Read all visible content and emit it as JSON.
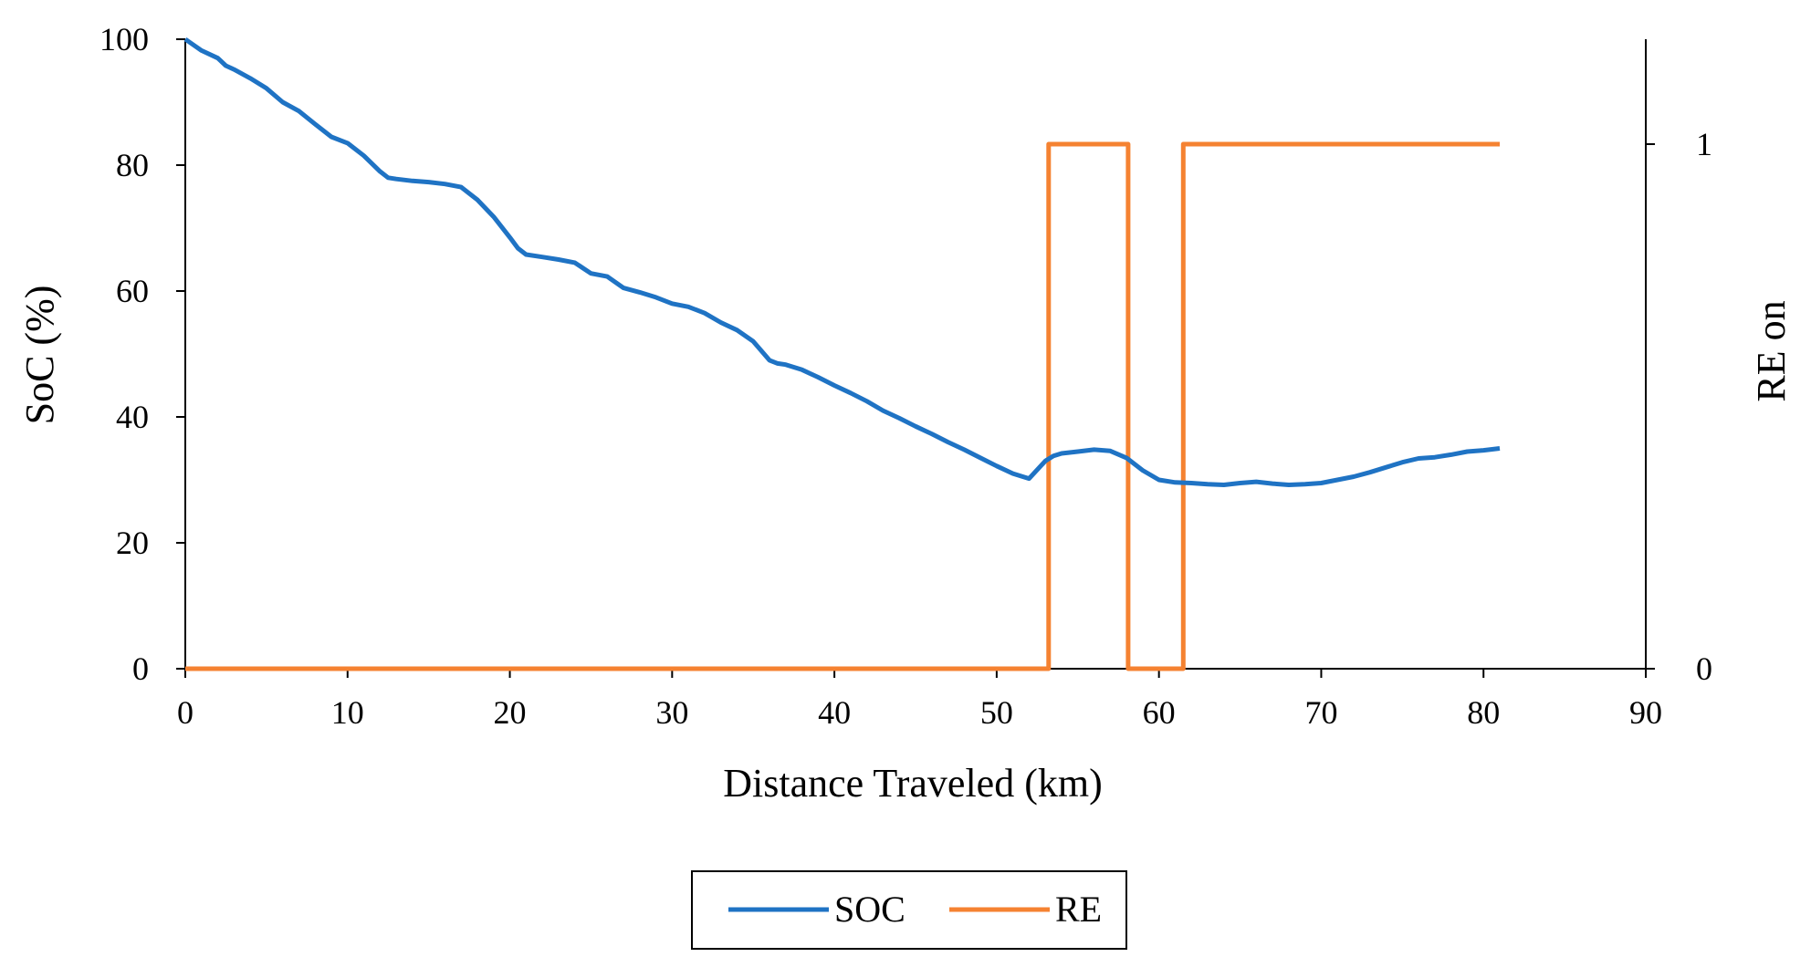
{
  "chart_data": {
    "type": "line",
    "title": "",
    "xlabel": "Distance Traveled (km)",
    "ylabel": "SoC (%)",
    "y2label": "RE on",
    "xlim": [
      0,
      90
    ],
    "ylim": [
      0,
      100
    ],
    "y2lim": [
      0,
      1.2
    ],
    "x_ticks": [
      "0",
      "10",
      "20",
      "30",
      "40",
      "50",
      "60",
      "70",
      "80",
      "90"
    ],
    "y_ticks": [
      "0",
      "20",
      "40",
      "60",
      "80",
      "100"
    ],
    "y2_ticks": [
      "0",
      "1"
    ],
    "grid": false,
    "legend_position": "bottom",
    "series": [
      {
        "name": "SOC",
        "color": "#1f73c4",
        "axis": "left",
        "x": [
          0,
          1,
          2,
          2.5,
          3,
          4,
          5,
          6,
          7,
          8,
          9,
          10,
          11,
          12,
          12.5,
          13,
          14,
          15,
          16,
          17,
          18,
          19,
          20,
          20.5,
          21,
          22,
          23,
          24,
          25,
          26,
          27,
          28,
          29,
          30,
          31,
          32,
          33,
          34,
          35,
          36,
          36.5,
          37,
          38,
          39,
          40,
          41,
          42,
          43,
          44,
          45,
          46,
          47,
          48,
          49,
          50,
          51,
          52,
          53,
          53.5,
          54,
          55,
          56,
          57,
          58,
          59,
          60,
          61,
          62,
          63,
          64,
          65,
          66,
          67,
          68,
          69,
          70,
          71,
          72,
          73,
          74,
          75,
          76,
          77,
          78,
          79,
          80,
          81
        ],
        "y": [
          100,
          98.2,
          97,
          95.8,
          95.2,
          93.8,
          92.2,
          90,
          88.6,
          86.5,
          84.5,
          83.5,
          81.5,
          79,
          78,
          77.8,
          77.5,
          77.3,
          77,
          76.5,
          74.5,
          71.8,
          68.5,
          66.8,
          65.8,
          65.4,
          65,
          64.5,
          62.8,
          62.3,
          60.5,
          59.8,
          59,
          58,
          57.5,
          56.5,
          55,
          53.8,
          52,
          49,
          48.5,
          48.3,
          47.5,
          46.3,
          45,
          43.8,
          42.5,
          41,
          39.8,
          38.5,
          37.3,
          36,
          34.8,
          33.5,
          32.2,
          31,
          30.2,
          33,
          33.8,
          34.2,
          34.5,
          34.8,
          34.6,
          33.5,
          31.5,
          30,
          29.6,
          29.5,
          29.3,
          29.2,
          29.5,
          29.7,
          29.4,
          29.2,
          29.3,
          29.5,
          30,
          30.5,
          31.2,
          32,
          32.8,
          33.4,
          33.6,
          34,
          34.5,
          34.7,
          35
        ]
      },
      {
        "name": "RE",
        "color": "#f58231",
        "axis": "right",
        "x": [
          0,
          53.2,
          53.2,
          58.1,
          58.1,
          61.5,
          61.5,
          81
        ],
        "y": [
          0,
          0,
          1,
          1,
          0,
          0,
          1,
          1
        ]
      }
    ]
  }
}
